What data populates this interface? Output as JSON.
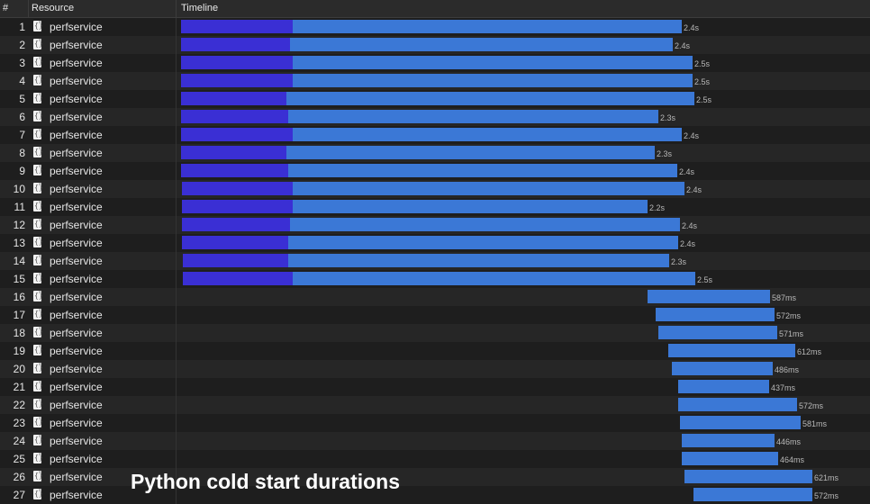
{
  "header": {
    "num_label": "#",
    "resource_label": "Resource",
    "timeline_label": "Timeline"
  },
  "colors": {
    "waiting": "#3a2fd4",
    "receiving": "#3b78d6",
    "background": "#1e1e1e"
  },
  "caption": "Python cold start durations",
  "rows": [
    {
      "num": "1",
      "resource": "perfservice",
      "duration": "2.4s"
    },
    {
      "num": "2",
      "resource": "perfservice",
      "duration": "2.4s"
    },
    {
      "num": "3",
      "resource": "perfservice",
      "duration": "2.5s"
    },
    {
      "num": "4",
      "resource": "perfservice",
      "duration": "2.5s"
    },
    {
      "num": "5",
      "resource": "perfservice",
      "duration": "2.5s"
    },
    {
      "num": "6",
      "resource": "perfservice",
      "duration": "2.3s"
    },
    {
      "num": "7",
      "resource": "perfservice",
      "duration": "2.4s"
    },
    {
      "num": "8",
      "resource": "perfservice",
      "duration": "2.3s"
    },
    {
      "num": "9",
      "resource": "perfservice",
      "duration": "2.4s"
    },
    {
      "num": "10",
      "resource": "perfservice",
      "duration": "2.4s"
    },
    {
      "num": "11",
      "resource": "perfservice",
      "duration": "2.2s"
    },
    {
      "num": "12",
      "resource": "perfservice",
      "duration": "2.4s"
    },
    {
      "num": "13",
      "resource": "perfservice",
      "duration": "2.4s"
    },
    {
      "num": "14",
      "resource": "perfservice",
      "duration": "2.3s"
    },
    {
      "num": "15",
      "resource": "perfservice",
      "duration": "2.5s"
    },
    {
      "num": "16",
      "resource": "perfservice",
      "duration": "587ms"
    },
    {
      "num": "17",
      "resource": "perfservice",
      "duration": "572ms"
    },
    {
      "num": "18",
      "resource": "perfservice",
      "duration": "571ms"
    },
    {
      "num": "19",
      "resource": "perfservice",
      "duration": "612ms"
    },
    {
      "num": "20",
      "resource": "perfservice",
      "duration": "486ms"
    },
    {
      "num": "21",
      "resource": "perfservice",
      "duration": "437ms"
    },
    {
      "num": "22",
      "resource": "perfservice",
      "duration": "572ms"
    },
    {
      "num": "23",
      "resource": "perfservice",
      "duration": "581ms"
    },
    {
      "num": "24",
      "resource": "perfservice",
      "duration": "446ms"
    },
    {
      "num": "25",
      "resource": "perfservice",
      "duration": "464ms"
    },
    {
      "num": "26",
      "resource": "perfservice",
      "duration": "621ms"
    },
    {
      "num": "27",
      "resource": "perfservice",
      "duration": "572ms"
    }
  ]
}
